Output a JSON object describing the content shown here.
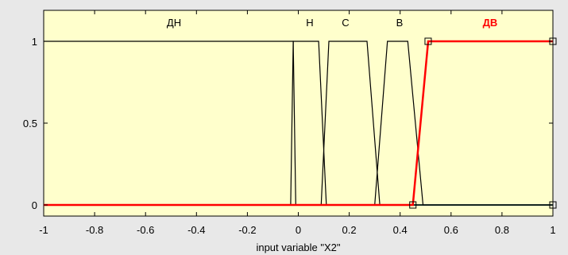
{
  "chart_data": {
    "type": "line",
    "title": "",
    "xlabel": "input variable \"X2\"",
    "ylabel": "",
    "xlim": [
      -1,
      1
    ],
    "ylim": [
      0,
      1
    ],
    "x_ticks": [
      "-1",
      "-0.8",
      "-0.6",
      "-0.4",
      "-0.2",
      "0",
      "0.2",
      "0.4",
      "0.6",
      "0.8",
      "1"
    ],
    "y_ticks": [
      "0",
      "0.5",
      "1"
    ],
    "grid": false,
    "series": [
      {
        "name": "ДН",
        "selected": false,
        "color": "#000000",
        "x": [
          -1,
          -0.02,
          -0.01
        ],
        "y": [
          1,
          1,
          0
        ]
      },
      {
        "name": "Н",
        "selected": false,
        "color": "#000000",
        "x": [
          -0.03,
          -0.02,
          0.0,
          0.08,
          0.11
        ],
        "y": [
          0,
          1,
          1,
          1,
          0
        ]
      },
      {
        "name": "С",
        "selected": false,
        "color": "#000000",
        "x": [
          0.09,
          0.12,
          0.27,
          0.32
        ],
        "y": [
          0,
          1,
          1,
          0
        ]
      },
      {
        "name": "В",
        "selected": false,
        "color": "#000000",
        "x": [
          0.3,
          0.35,
          0.43,
          0.49
        ],
        "y": [
          0,
          1,
          1,
          0
        ]
      },
      {
        "name": "ДВ",
        "selected": true,
        "color": "#ff0000",
        "x": [
          0.45,
          0.51,
          1.0
        ],
        "y": [
          0,
          1,
          1
        ]
      }
    ],
    "zero_line": {
      "x": [
        -1,
        1
      ],
      "y": [
        0,
        0
      ],
      "color": "#00c8c8"
    },
    "handles": [
      {
        "x": 0.45,
        "y": 0
      },
      {
        "x": 0.51,
        "y": 1
      },
      {
        "x": 1.0,
        "y": 1
      },
      {
        "x": 1.0,
        "y": 0
      }
    ],
    "colors": {
      "plot_background": "#ffffcc",
      "figure_background": "#e8e8e8",
      "axis": "#000000",
      "selected": "#ff0000"
    }
  }
}
